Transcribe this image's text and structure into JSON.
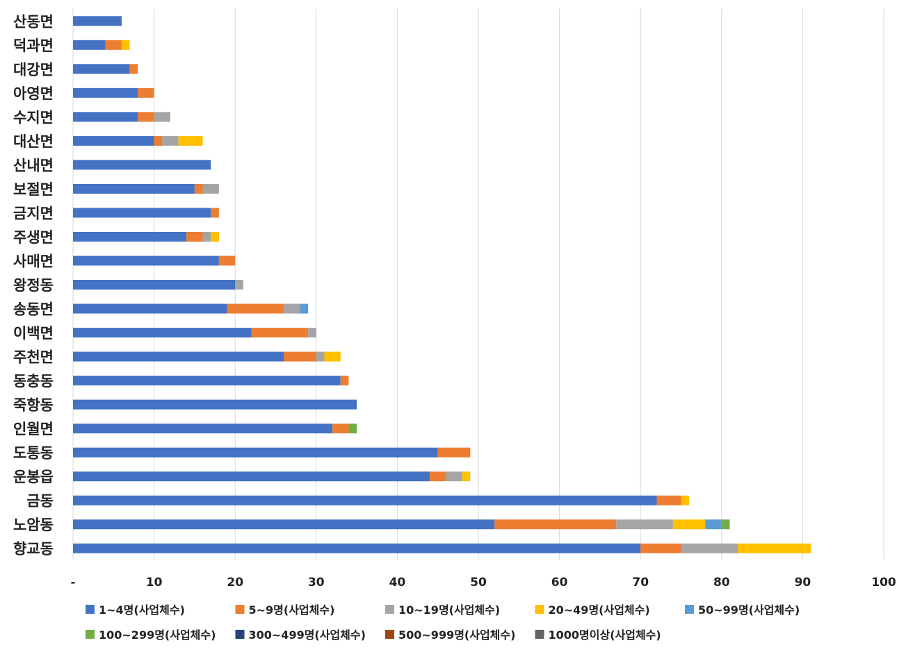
{
  "chart_data": {
    "type": "bar",
    "orientation": "horizontal",
    "stacked": true,
    "categories": [
      "산동면",
      "덕과면",
      "대강면",
      "아영면",
      "수지면",
      "대산면",
      "산내면",
      "보절면",
      "금지면",
      "주생면",
      "사매면",
      "왕정동",
      "송동면",
      "이백면",
      "주천면",
      "동충동",
      "죽항동",
      "인월면",
      "도통동",
      "운봉읍",
      "금동",
      "노암동",
      "향교동"
    ],
    "series": [
      {
        "name": "1~4명(사업체수)",
        "color": "#4472C4",
        "values": [
          6,
          4,
          7,
          8,
          8,
          10,
          17,
          15,
          17,
          14,
          18,
          20,
          19,
          22,
          26,
          33,
          35,
          32,
          45,
          44,
          72,
          52,
          70
        ]
      },
      {
        "name": "5~9명(사업체수)",
        "color": "#ED7D31",
        "values": [
          0,
          2,
          1,
          2,
          2,
          1,
          0,
          1,
          1,
          2,
          2,
          0,
          7,
          7,
          4,
          1,
          0,
          2,
          4,
          2,
          3,
          15,
          5
        ]
      },
      {
        "name": "10~19명(사업체수)",
        "color": "#A5A5A5",
        "values": [
          0,
          0,
          0,
          0,
          2,
          2,
          0,
          2,
          0,
          1,
          0,
          1,
          2,
          1,
          1,
          0,
          0,
          0,
          0,
          2,
          0,
          7,
          7
        ]
      },
      {
        "name": "20~49명(사업체수)",
        "color": "#FFC000",
        "values": [
          0,
          1,
          0,
          0,
          0,
          3,
          0,
          0,
          0,
          1,
          0,
          0,
          0,
          0,
          2,
          0,
          0,
          0,
          0,
          1,
          1,
          4,
          9
        ]
      },
      {
        "name": "50~99명(사업체수)",
        "color": "#5B9BD5",
        "values": [
          0,
          0,
          0,
          0,
          0,
          0,
          0,
          0,
          0,
          0,
          0,
          0,
          1,
          0,
          0,
          0,
          0,
          0,
          0,
          0,
          0,
          2,
          0
        ]
      },
      {
        "name": "100~299명(사업체수)",
        "color": "#70AD47",
        "values": [
          0,
          0,
          0,
          0,
          0,
          0,
          0,
          0,
          0,
          0,
          0,
          0,
          0,
          0,
          0,
          0,
          0,
          1,
          0,
          0,
          0,
          1,
          0
        ]
      },
      {
        "name": "300~499명(사업체수)",
        "color": "#264478",
        "values": [
          0,
          0,
          0,
          0,
          0,
          0,
          0,
          0,
          0,
          0,
          0,
          0,
          0,
          0,
          0,
          0,
          0,
          0,
          0,
          0,
          0,
          0,
          0
        ]
      },
      {
        "name": "500~999명(사업체수)",
        "color": "#9E480E",
        "values": [
          0,
          0,
          0,
          0,
          0,
          0,
          0,
          0,
          0,
          0,
          0,
          0,
          0,
          0,
          0,
          0,
          0,
          0,
          0,
          0,
          0,
          0,
          0
        ]
      },
      {
        "name": "1000명이상(사업체수)",
        "color": "#636363",
        "values": [
          0,
          0,
          0,
          0,
          0,
          0,
          0,
          0,
          0,
          0,
          0,
          0,
          0,
          0,
          0,
          0,
          0,
          0,
          0,
          0,
          0,
          0,
          0
        ]
      }
    ],
    "xlim": [
      0,
      100
    ],
    "xticks": [
      0,
      10,
      20,
      30,
      40,
      50,
      60,
      70,
      80,
      90,
      100
    ],
    "xtick_labels": [
      "-",
      "10",
      "20",
      "30",
      "40",
      "50",
      "60",
      "70",
      "80",
      "90",
      "100"
    ],
    "grid": true,
    "legend": "bottom",
    "title": "",
    "xlabel": "",
    "ylabel": ""
  }
}
